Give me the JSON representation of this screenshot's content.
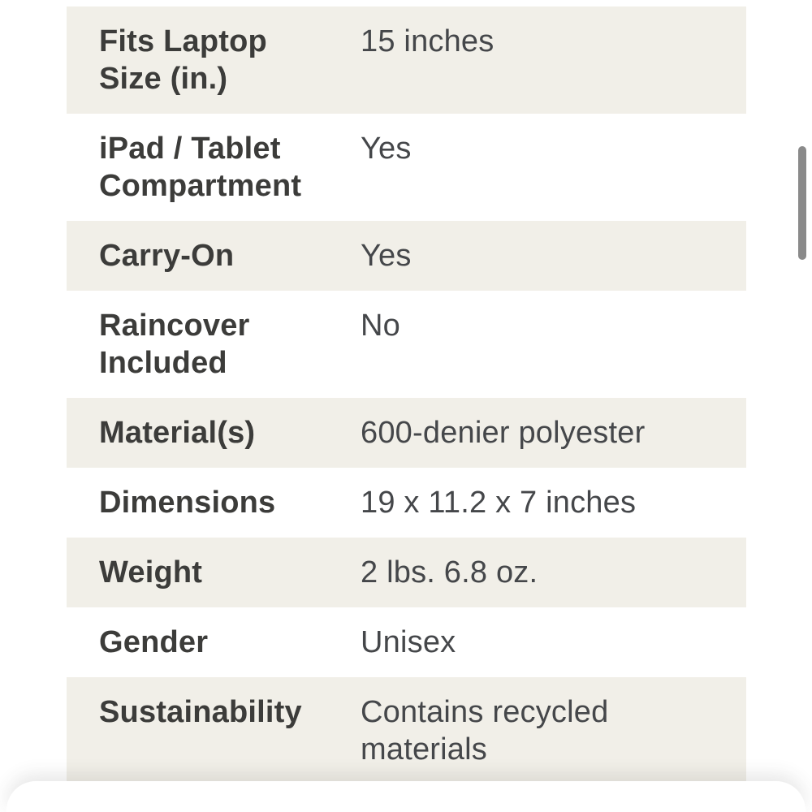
{
  "colors": {
    "row_alt_background": "#f1efe8",
    "label_text": "#3c3c3a",
    "value_text": "#45474a",
    "scrollbar_thumb": "#8a8a8a",
    "page_background": "#ffffff"
  },
  "spec_table": {
    "rows": [
      {
        "label": "Fits Laptop\nSize (in.)",
        "value": "15 inches"
      },
      {
        "label": "iPad / Tablet\nCompartment",
        "value": "Yes"
      },
      {
        "label": "Carry-On",
        "value": "Yes"
      },
      {
        "label": "Raincover\nIncluded",
        "value": "No"
      },
      {
        "label": "Material(s)",
        "value": "600-denier polyester"
      },
      {
        "label": "Dimensions",
        "value": "19 x 11.2 x 7 inches"
      },
      {
        "label": "Weight",
        "value": "2 lbs. 6.8 oz."
      },
      {
        "label": "Gender",
        "value": "Unisex"
      },
      {
        "label": "Sustainability",
        "value": "Contains recycled\nmaterials"
      }
    ]
  }
}
